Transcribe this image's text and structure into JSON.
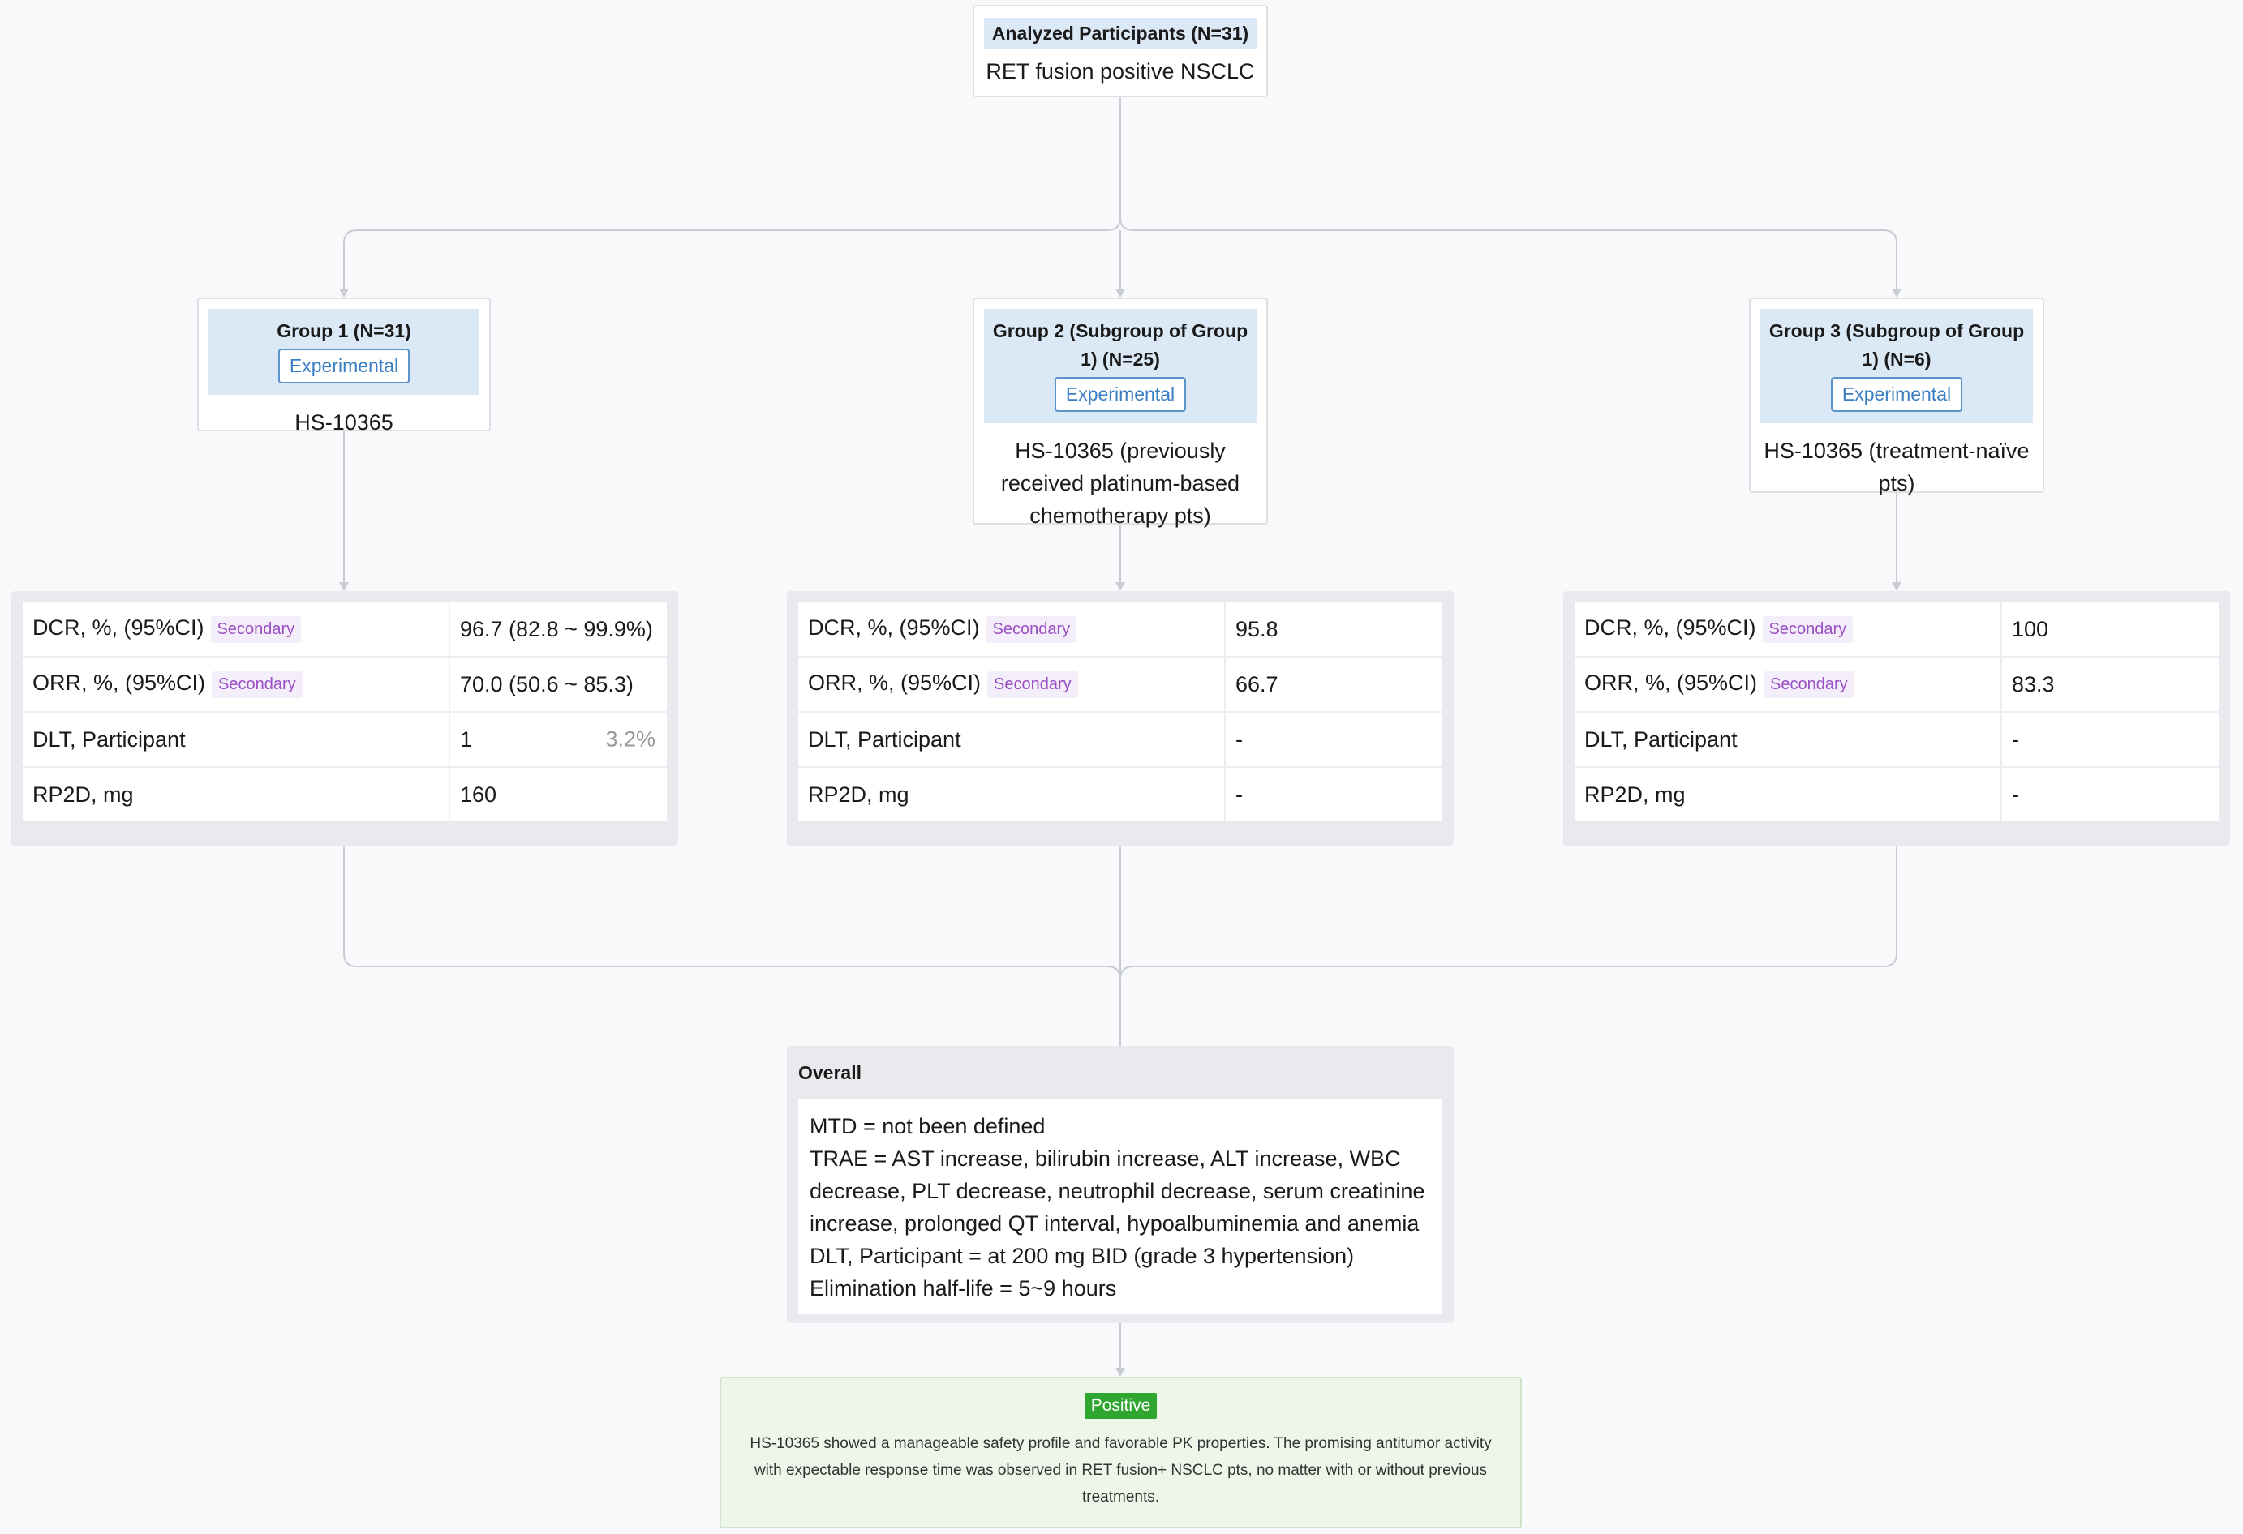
{
  "header": {
    "title": "Analyzed Participants (N=31)",
    "subtitle": "RET fusion positive NSCLC"
  },
  "groups": [
    {
      "title": "Group 1 (N=31)",
      "tag": "Experimental",
      "intervention": "HS-10365",
      "metrics": [
        {
          "label": "DCR, %, (95%CI)",
          "tag": "Secondary",
          "value": "96.7 (82.8 ~ 99.9%)",
          "extra": ""
        },
        {
          "label": "ORR, %, (95%CI)",
          "tag": "Secondary",
          "value": "70.0 (50.6 ~ 85.3)",
          "extra": ""
        },
        {
          "label": "DLT, Participant",
          "tag": "",
          "value": "1",
          "extra": "3.2%"
        },
        {
          "label": "RP2D, mg",
          "tag": "",
          "value": "160",
          "extra": ""
        }
      ]
    },
    {
      "title": "Group 2 (Subgroup of Group 1) (N=25)",
      "tag": "Experimental",
      "intervention": "HS-10365 (previously received platinum-based chemotherapy pts)",
      "metrics": [
        {
          "label": "DCR, %, (95%CI)",
          "tag": "Secondary",
          "value": "95.8",
          "extra": ""
        },
        {
          "label": "ORR, %, (95%CI)",
          "tag": "Secondary",
          "value": "66.7",
          "extra": ""
        },
        {
          "label": "DLT, Participant",
          "tag": "",
          "value": "-",
          "extra": ""
        },
        {
          "label": "RP2D, mg",
          "tag": "",
          "value": "-",
          "extra": ""
        }
      ]
    },
    {
      "title": "Group 3 (Subgroup of Group 1) (N=6)",
      "tag": "Experimental",
      "intervention": "HS-10365 (treatment-naïve pts)",
      "metrics": [
        {
          "label": "DCR, %, (95%CI)",
          "tag": "Secondary",
          "value": "100",
          "extra": ""
        },
        {
          "label": "ORR, %, (95%CI)",
          "tag": "Secondary",
          "value": "83.3",
          "extra": ""
        },
        {
          "label": "DLT, Participant",
          "tag": "",
          "value": "-",
          "extra": ""
        },
        {
          "label": "RP2D, mg",
          "tag": "",
          "value": "-",
          "extra": ""
        }
      ]
    }
  ],
  "overall": {
    "title": "Overall",
    "lines": [
      "MTD = not been defined",
      "TRAE = AST increase, bilirubin increase, ALT increase, WBC decrease, PLT decrease, neutrophil decrease, serum creatinine increase, prolonged QT interval, hypoalbuminemia and anemia",
      "DLT, Participant = at 200 mg BID (grade 3 hypertension)",
      "Elimination half-life = 5~9 hours"
    ]
  },
  "result": {
    "tag": "Positive",
    "text": "HS-10365 showed a manageable safety profile and favorable PK properties. The promising antitumor activity with expectable response time was observed in RET fusion+ NSCLC pts, no matter with or without previous treatments."
  },
  "colors": {
    "header_fill": "#dbe8f5",
    "experimental_tag": "#3a7ec2",
    "secondary_tag": "#9a4fc4",
    "positive_tag": "#2fa62f",
    "result_fill": "#eef6ea",
    "connector": "#c9ccd2"
  }
}
